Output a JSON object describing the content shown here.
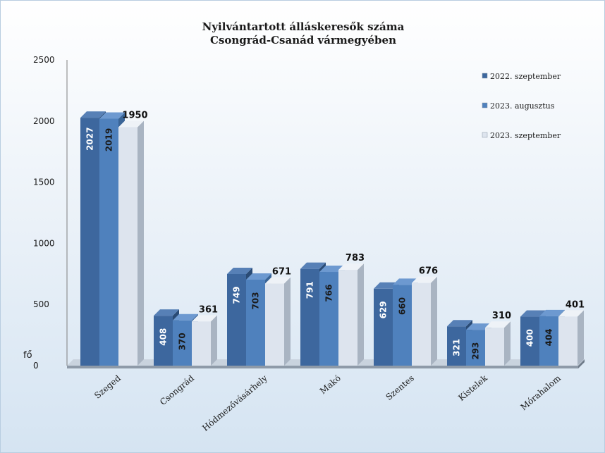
{
  "chart_data": {
    "type": "bar",
    "title": "Nyilvántartott álláskeresők száma",
    "subtitle": "Csongrád-Csanád vármegyében",
    "ylabel": "fő",
    "ylim": [
      0,
      2500
    ],
    "yticks": [
      "0",
      "500",
      "1000",
      "1500",
      "2000",
      "2500"
    ],
    "categories": [
      "Szeged",
      "Csongrád",
      "Hódmezővásárhely",
      "Makó",
      "Szentes",
      "Kistelek",
      "Mórahalom"
    ],
    "series": [
      {
        "name": "2022. szeptember",
        "values": [
          2027,
          408,
          749,
          791,
          629,
          321,
          400
        ]
      },
      {
        "name": "2023. augusztus",
        "values": [
          2019,
          370,
          703,
          766,
          660,
          293,
          404
        ]
      },
      {
        "name": "2023. szeptember",
        "values": [
          1950,
          361,
          671,
          783,
          676,
          310,
          401
        ]
      }
    ],
    "legend_position": "top-right",
    "grid": false
  },
  "colors": {
    "series": [
      "#3d679e",
      "#4f81bd",
      "#dde4ee"
    ],
    "series_top": [
      "#5780b6",
      "#6d99d0",
      "#eef2f7"
    ],
    "series_side": [
      "#2a4b75",
      "#3a6597",
      "#a9b4c2"
    ]
  }
}
